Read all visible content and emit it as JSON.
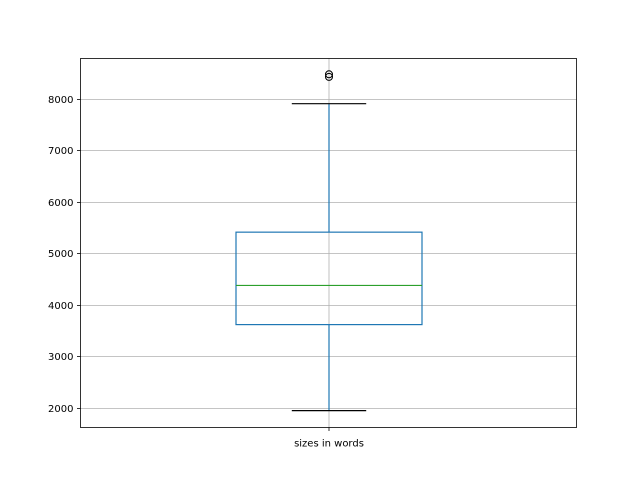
{
  "chart_data": {
    "type": "boxplot",
    "categories": [
      "sizes in words"
    ],
    "boxes": [
      {
        "label": "sizes in words",
        "whisker_low": 1940,
        "q1": 3610,
        "median": 4370,
        "q3": 5405,
        "whisker_high": 7900,
        "outliers": [
          8420,
          8470
        ]
      }
    ],
    "title": "",
    "xlabel": "",
    "ylabel": "",
    "ylim": [
      1612,
      8777
    ],
    "yticks": [
      2000,
      3000,
      4000,
      5000,
      6000,
      7000,
      8000
    ],
    "ytick_labels": [
      "2000",
      "3000",
      "4000",
      "5000",
      "6000",
      "7000",
      "8000"
    ],
    "grid": true,
    "colors": {
      "box": "#1f77b4",
      "median": "#2ca02c",
      "whisker_cap": "#000000",
      "grid": "#b0b0b0"
    }
  }
}
